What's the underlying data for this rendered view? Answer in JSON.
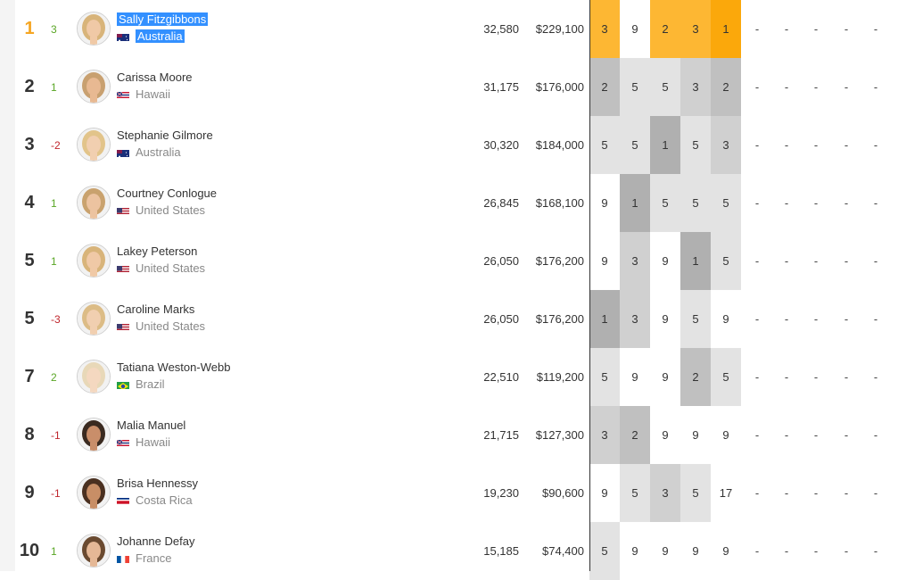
{
  "colors": {
    "leader_rank": "#f5a623",
    "change_up": "#5aa626",
    "change_down": "#c0262d",
    "best": "#fba80b",
    "leader_cell": "#fdb733",
    "heat_1": "#b0b0b0",
    "heat_2": "#c0c0c0",
    "heat_3": "#d0d0d0",
    "heat_5": "#e3e3e3",
    "selection": "#3390ff"
  },
  "athletes": [
    {
      "rank": "1",
      "change": "3",
      "name": "Sally Fitzgibbons",
      "country": "Australia",
      "flag": "flag-australia-icon",
      "points": "32,580",
      "prize": "$229,100",
      "results": [
        "3",
        "9",
        "2",
        "3",
        "1"
      ]
    },
    {
      "rank": "2",
      "change": "1",
      "name": "Carissa Moore",
      "country": "Hawaii",
      "flag": "flag-hawaii-icon",
      "points": "31,175",
      "prize": "$176,000",
      "results": [
        "2",
        "5",
        "5",
        "3",
        "2"
      ]
    },
    {
      "rank": "3",
      "change": "-2",
      "name": "Stephanie Gilmore",
      "country": "Australia",
      "flag": "flag-australia-icon",
      "points": "30,320",
      "prize": "$184,000",
      "results": [
        "5",
        "5",
        "1",
        "5",
        "3"
      ]
    },
    {
      "rank": "4",
      "change": "1",
      "name": "Courtney Conlogue",
      "country": "United States",
      "flag": "flag-usa-icon",
      "points": "26,845",
      "prize": "$168,100",
      "results": [
        "9",
        "1",
        "5",
        "5",
        "5"
      ]
    },
    {
      "rank": "5",
      "change": "1",
      "name": "Lakey Peterson",
      "country": "United States",
      "flag": "flag-usa-icon",
      "points": "26,050",
      "prize": "$176,200",
      "results": [
        "9",
        "3",
        "9",
        "1",
        "5"
      ]
    },
    {
      "rank": "5",
      "change": "-3",
      "name": "Caroline Marks",
      "country": "United States",
      "flag": "flag-usa-icon",
      "points": "26,050",
      "prize": "$176,200",
      "results": [
        "1",
        "3",
        "9",
        "5",
        "9"
      ]
    },
    {
      "rank": "7",
      "change": "2",
      "name": "Tatiana Weston-Webb",
      "country": "Brazil",
      "flag": "flag-brazil-icon",
      "points": "22,510",
      "prize": "$119,200",
      "results": [
        "5",
        "9",
        "9",
        "2",
        "5"
      ]
    },
    {
      "rank": "8",
      "change": "-1",
      "name": "Malia Manuel",
      "country": "Hawaii",
      "flag": "flag-hawaii-icon",
      "points": "21,715",
      "prize": "$127,300",
      "results": [
        "3",
        "2",
        "9",
        "9",
        "9"
      ]
    },
    {
      "rank": "9",
      "change": "-1",
      "name": "Brisa Hennessy",
      "country": "Costa Rica",
      "flag": "flag-costa-rica-icon",
      "points": "19,230",
      "prize": "$90,600",
      "results": [
        "9",
        "5",
        "3",
        "5",
        "17"
      ]
    },
    {
      "rank": "10",
      "change": "1",
      "name": "Johanne Defay",
      "country": "France",
      "flag": "flag-france-icon",
      "points": "15,185",
      "prize": "$74,400",
      "results": [
        "5",
        "9",
        "9",
        "9",
        "9"
      ]
    }
  ],
  "pending_events": [
    "-",
    "-",
    "-",
    "-",
    "-"
  ]
}
